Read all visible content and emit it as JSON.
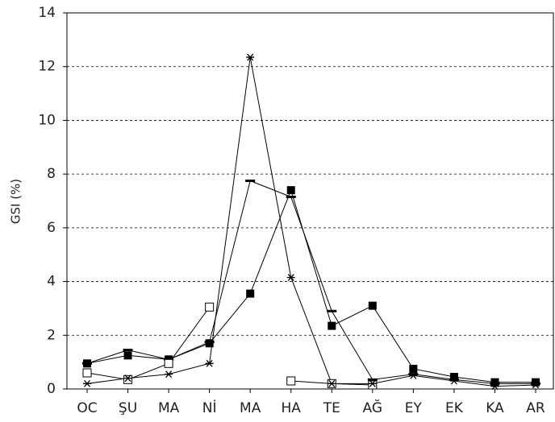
{
  "chart_data": {
    "type": "line",
    "ylabel": "GSI (%)",
    "categories": [
      "OC",
      "ŞU",
      "MA",
      "Nİ",
      "MA",
      "HA",
      "TE",
      "AĞ",
      "EY",
      "EK",
      "KA",
      "AR"
    ],
    "series": [
      {
        "marker": "filled-square",
        "color": "#000000",
        "values": [
          0.95,
          1.25,
          1.1,
          1.7,
          3.55,
          7.4,
          2.35,
          3.1,
          0.75,
          0.45,
          0.25,
          0.25
        ]
      },
      {
        "marker": "dash",
        "color": "#000000",
        "values": [
          0.95,
          1.45,
          1.1,
          1.75,
          7.75,
          7.15,
          2.9,
          0.35,
          0.55,
          0.35,
          0.2,
          0.2
        ]
      },
      {
        "marker": "open-square",
        "color": "#000000",
        "values": [
          0.6,
          0.35,
          0.95,
          3.05,
          null,
          0.3,
          0.2,
          0.15,
          null,
          null,
          null,
          null
        ]
      },
      {
        "marker": "asterisk",
        "color": "#000000",
        "values": [
          0.2,
          0.4,
          0.55,
          0.95,
          12.35,
          4.15,
          0.2,
          0.2,
          0.5,
          0.3,
          0.1,
          0.15
        ]
      }
    ],
    "ylim": [
      0,
      14
    ],
    "yticks": [
      0,
      2,
      4,
      6,
      8,
      10,
      12,
      14
    ],
    "grid": true
  }
}
